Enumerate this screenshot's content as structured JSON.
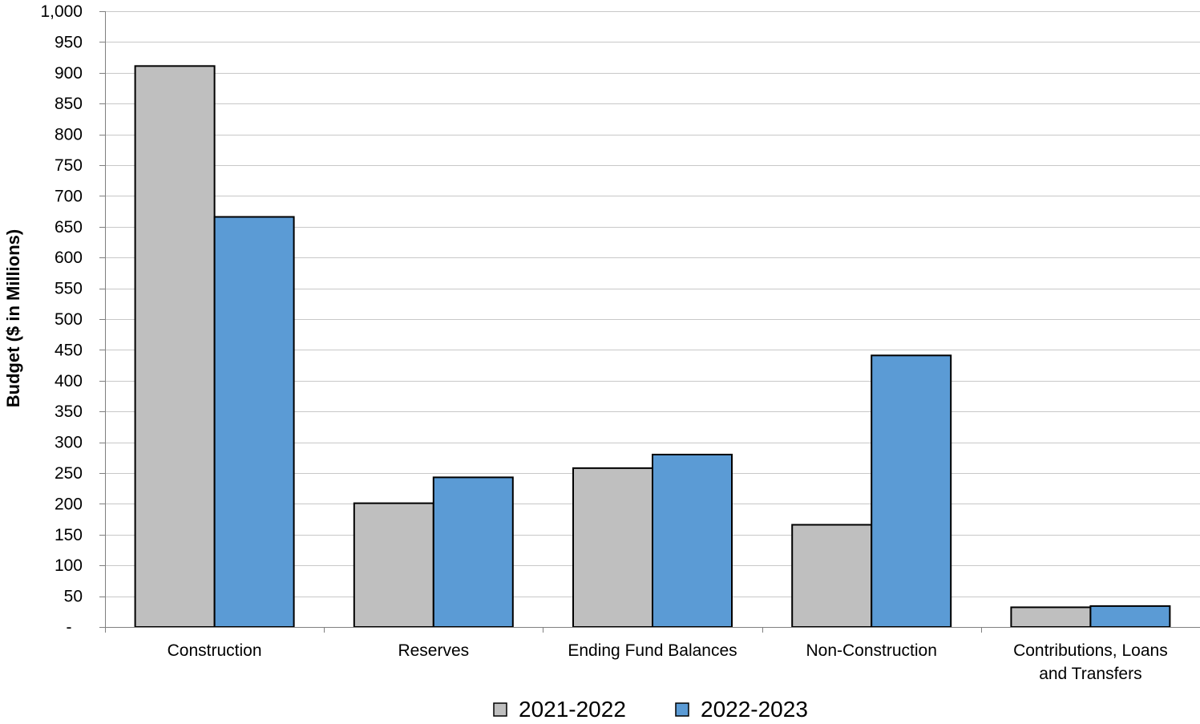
{
  "chart_data": {
    "type": "bar",
    "title": "",
    "xlabel": "",
    "ylabel": "Budget ($ in Millions)",
    "ylim": [
      0,
      1000
    ],
    "yticks": [
      0,
      50,
      100,
      150,
      200,
      250,
      300,
      350,
      400,
      450,
      500,
      550,
      600,
      650,
      700,
      750,
      800,
      850,
      900,
      950,
      1000
    ],
    "ytick_labels": [
      "-",
      "50",
      "100",
      "150",
      "200",
      "250",
      "300",
      "350",
      "400",
      "450",
      "500",
      "550",
      "600",
      "650",
      "700",
      "750",
      "800",
      "850",
      "900",
      "950",
      "1,000"
    ],
    "categories": [
      [
        "Construction"
      ],
      [
        "Reserves"
      ],
      [
        "Ending Fund Balances"
      ],
      [
        "Non-Construction"
      ],
      [
        "Contributions, Loans",
        "and Transfers"
      ]
    ],
    "series": [
      {
        "name": "2021-2022",
        "color": "#bfbfbf",
        "values": [
          911,
          201,
          258,
          166,
          32
        ]
      },
      {
        "name": "2022-2023",
        "color": "#5b9bd5",
        "values": [
          666,
          243,
          280,
          441,
          34
        ]
      }
    ],
    "grid": true,
    "legend_position": "bottom"
  }
}
